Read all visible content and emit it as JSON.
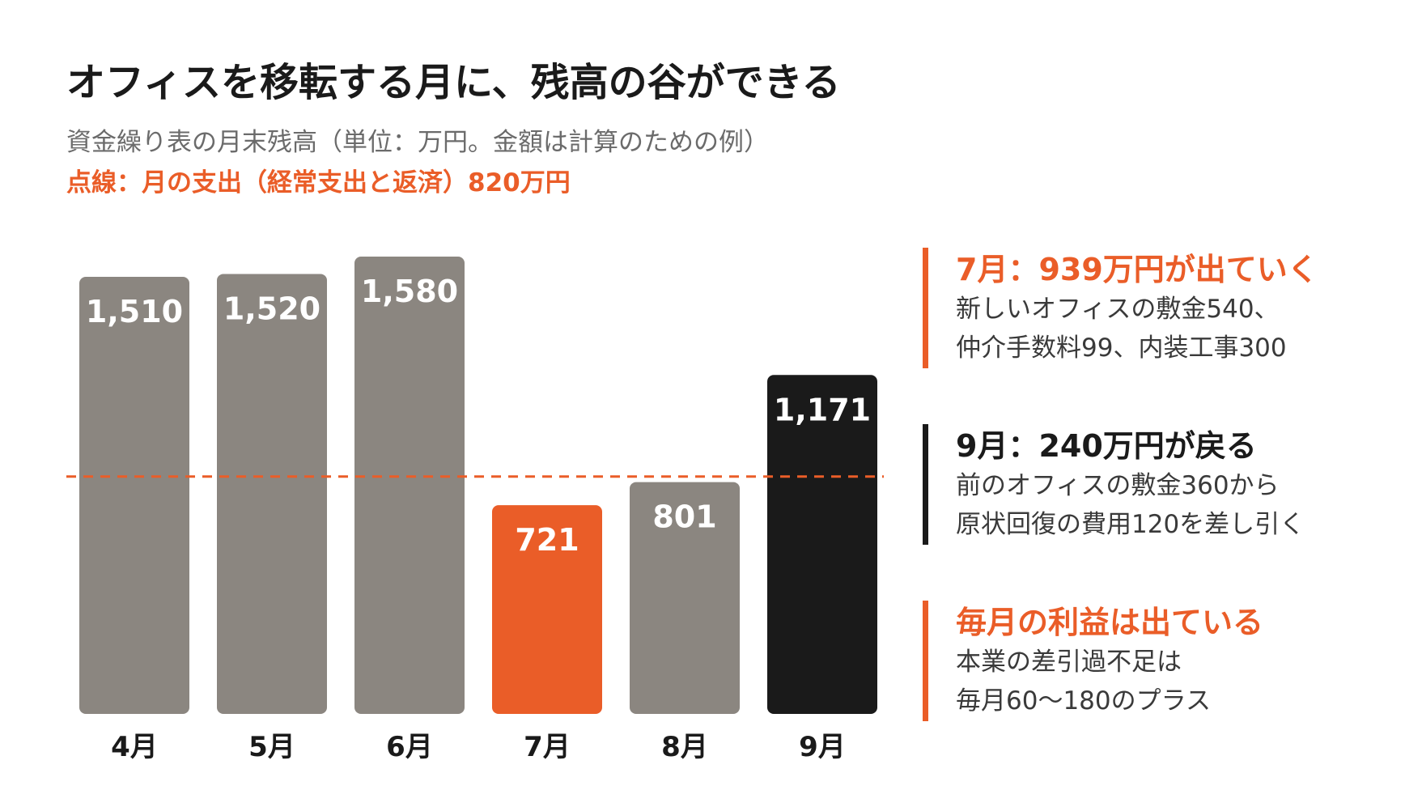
{
  "title": "オフィスを移転する月に、残高の谷ができる",
  "subtitle": "資金繰り表の月末残高（単位：万円。金額は計算のための例）",
  "legend_note": "点線：月の支出（経常支出と返済）820万円",
  "colors": {
    "accent": "#ea5d28",
    "dark": "#1a1a1a",
    "bar_default": "#8b8680",
    "text_gray": "#6b6b6b",
    "text_body": "#3a3a3a"
  },
  "chart_data": {
    "type": "bar",
    "categories": [
      "4月",
      "5月",
      "6月",
      "7月",
      "8月",
      "9月"
    ],
    "values": [
      1510,
      1520,
      1580,
      721,
      801,
      1171
    ],
    "value_labels": [
      "1,510",
      "1,520",
      "1,580",
      "721",
      "801",
      "1,171"
    ],
    "bar_colors": [
      "#8b8680",
      "#8b8680",
      "#8b8680",
      "#ea5d28",
      "#8b8680",
      "#1a1a1a"
    ],
    "reference_line": {
      "value": 820,
      "style": "dashed",
      "color": "#ea5d28"
    },
    "ylim": [
      0,
      1580
    ],
    "grid": false,
    "xlabel": "",
    "ylabel": ""
  },
  "panels": [
    {
      "heading": "7月：939万円が出ていく",
      "lines": [
        "新しいオフィスの敷金540、",
        "仲介手数料99、内装工事300"
      ],
      "color": "#ea5d28"
    },
    {
      "heading": "9月：240万円が戻る",
      "lines": [
        "前のオフィスの敷金360から",
        "原状回復の費用120を差し引く"
      ],
      "color": "#1a1a1a"
    },
    {
      "heading": "毎月の利益は出ている",
      "lines": [
        "本業の差引過不足は",
        "毎月60〜180のプラス"
      ],
      "color": "#ea5d28"
    }
  ]
}
